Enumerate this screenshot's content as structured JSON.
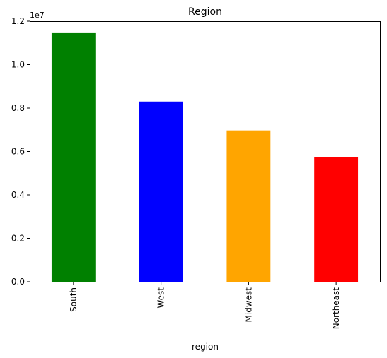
{
  "chart_data": {
    "type": "bar",
    "title": "Region",
    "xlabel": "region",
    "ylabel": "",
    "categories": [
      "South",
      "West",
      "Midwest",
      "Northeast"
    ],
    "values": [
      11450000,
      8300000,
      6970000,
      5730000
    ],
    "bar_colors": [
      "#008000",
      "#0000ff",
      "#ffa500",
      "#ff0000"
    ],
    "ylim": [
      0,
      12000000
    ],
    "y_offset_label": "1e7",
    "y_ticks": [
      0,
      2000000,
      4000000,
      6000000,
      8000000,
      10000000,
      12000000
    ],
    "y_tick_labels": [
      "0.0",
      "0.2",
      "0.4",
      "0.6",
      "0.8",
      "1.0",
      "1.2"
    ],
    "grid": false,
    "legend": "none"
  }
}
